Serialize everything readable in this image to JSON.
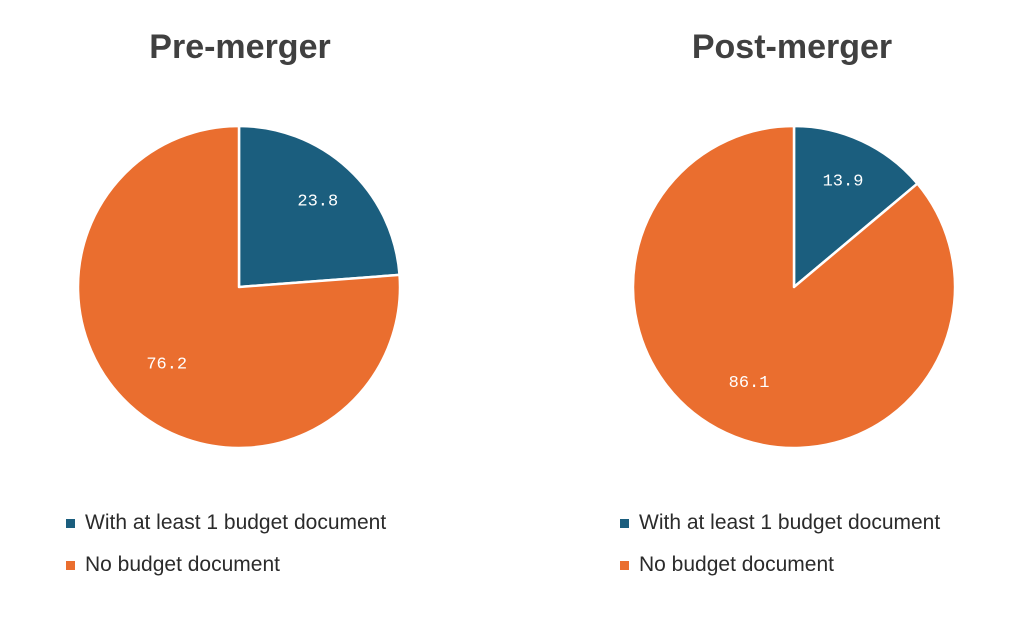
{
  "colors": {
    "series_a": "#1b5e7e",
    "series_b": "#ea6e2f"
  },
  "legend_labels": [
    "With at least 1 budget document",
    "No budget document"
  ],
  "chart_data": [
    {
      "type": "pie",
      "title": "Pre-merger",
      "categories": [
        "With at least 1 budget document",
        "No budget document"
      ],
      "values": [
        23.8,
        76.2
      ],
      "labels": [
        "23.8",
        "76.2"
      ],
      "start_angle_deg": 0,
      "direction": "clockwise",
      "legend_position": "bottom"
    },
    {
      "type": "pie",
      "title": "Post-merger",
      "categories": [
        "With at least 1 budget document",
        "No budget document"
      ],
      "values": [
        13.9,
        86.1
      ],
      "labels": [
        "13.9",
        "86.1"
      ],
      "start_angle_deg": 0,
      "direction": "clockwise",
      "legend_position": "bottom"
    }
  ]
}
